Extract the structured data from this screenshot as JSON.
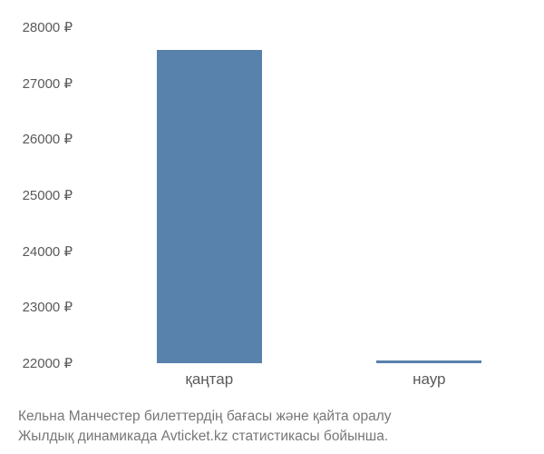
{
  "chart": {
    "type": "bar",
    "y_axis": {
      "min": 22000,
      "max": 28000,
      "ticks": [
        22000,
        23000,
        24000,
        25000,
        26000,
        27000,
        28000
      ],
      "tick_labels": [
        "22000 ₽",
        "23000 ₽",
        "24000 ₽",
        "25000 ₽",
        "26000 ₽",
        "27000 ₽",
        "28000 ₽"
      ],
      "label_color": "#5a5a5a",
      "label_fontsize": 15
    },
    "x_axis": {
      "categories": [
        "қаңтар",
        "наур"
      ],
      "label_color": "#5a5a5a",
      "label_fontsize": 17
    },
    "series": {
      "values": [
        27600,
        22050
      ],
      "bar_color": "#5881ac",
      "bar_width_frac": 0.48,
      "bar_centers_frac": [
        0.28,
        0.78
      ]
    },
    "background_color": "#ffffff"
  },
  "caption": {
    "line1": "Кельна Манчестер билеттердің бағасы және қайта оралу",
    "line2": "Жылдық динамикада Avticket.kz статистикасы бойынша.",
    "color": "#777777",
    "fontsize": 15.5
  }
}
